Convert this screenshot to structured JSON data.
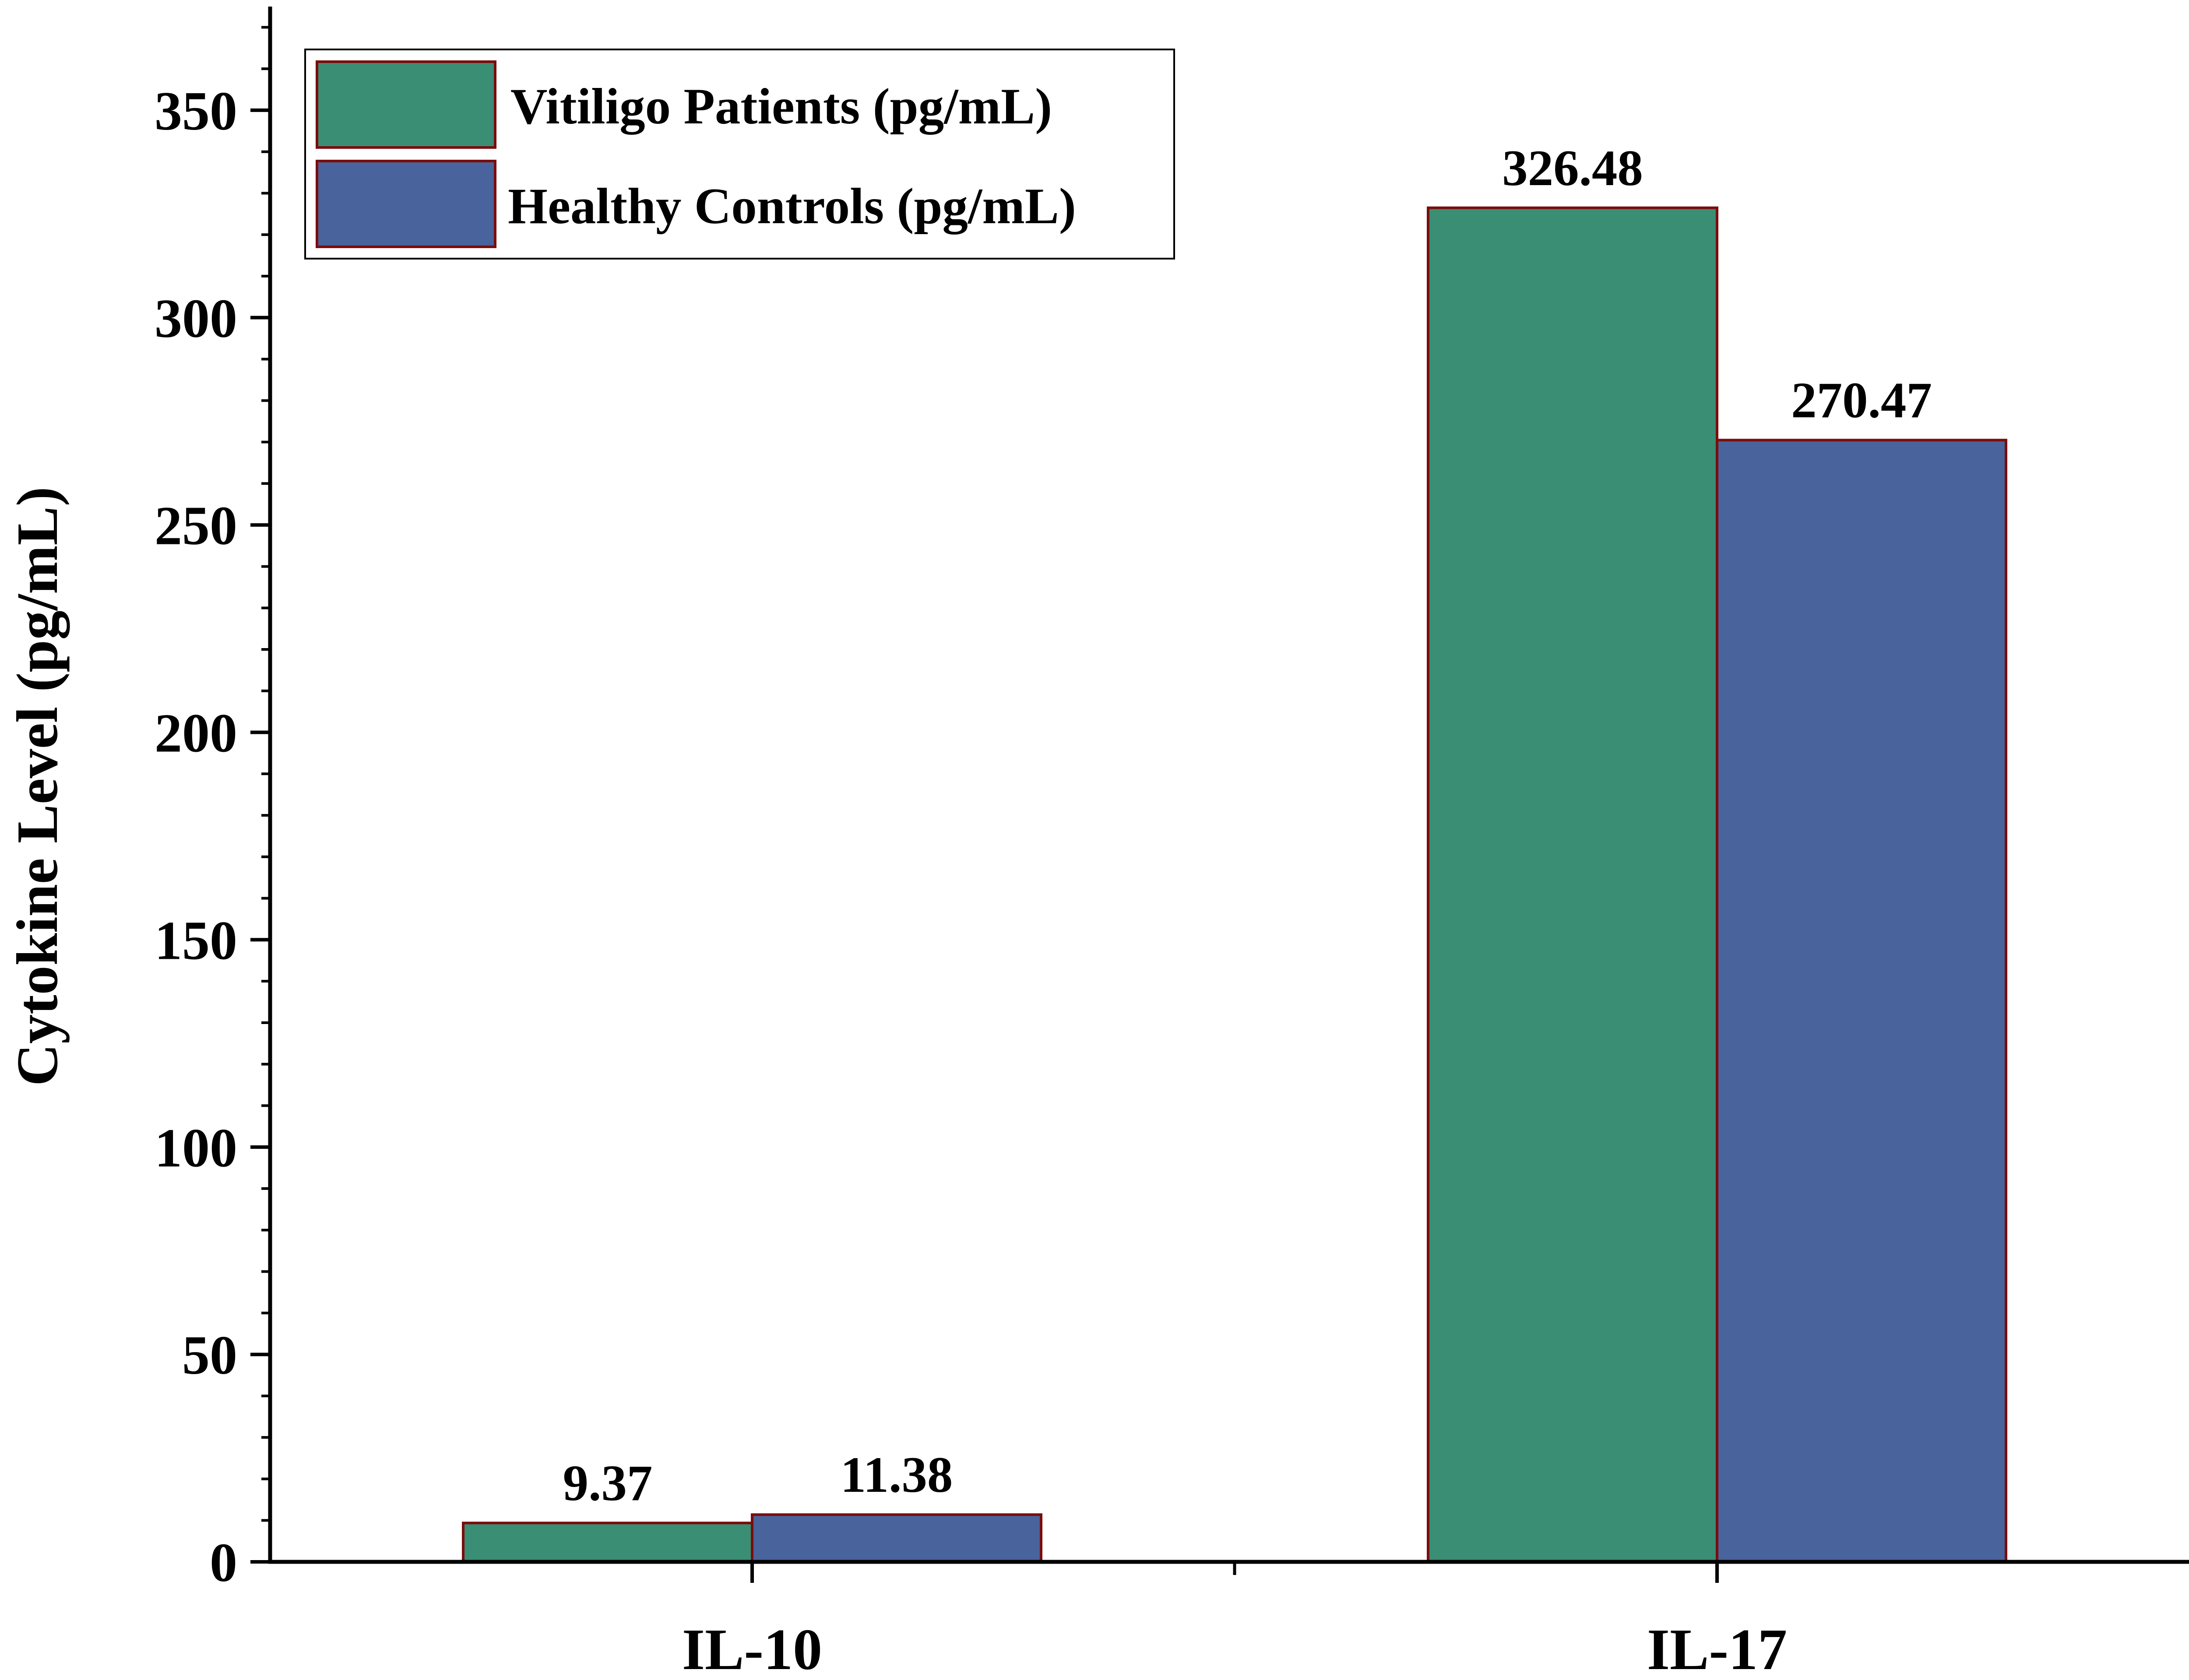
{
  "chart_data": {
    "type": "bar",
    "title": "",
    "xlabel": "",
    "ylabel": "Cytokine Level (pg/mL)",
    "categories": [
      "IL-10",
      "IL-17"
    ],
    "series": [
      {
        "name": "Vitiligo Patients (pg/mL)",
        "values": [
          9.37,
          326.48
        ],
        "labels": [
          "9.37",
          "326.48"
        ],
        "color": "#3a8e74"
      },
      {
        "name": "Healthy Controls (pg/mL)",
        "values": [
          11.38,
          270.47
        ],
        "labels": [
          "11.38",
          "270.47"
        ],
        "color": "#49639c"
      }
    ],
    "ylim": [
      0,
      375
    ],
    "yticks": [
      0,
      50,
      100,
      150,
      200,
      250,
      300,
      350
    ],
    "ytick_labels": [
      "0",
      "50",
      "100",
      "150",
      "200",
      "250",
      "300",
      "350"
    ],
    "minor_tick_step": 10,
    "grid": false,
    "legend_position": "top-left",
    "bar_edge_color": "#7a0d0d",
    "axis_color": "#000000"
  }
}
